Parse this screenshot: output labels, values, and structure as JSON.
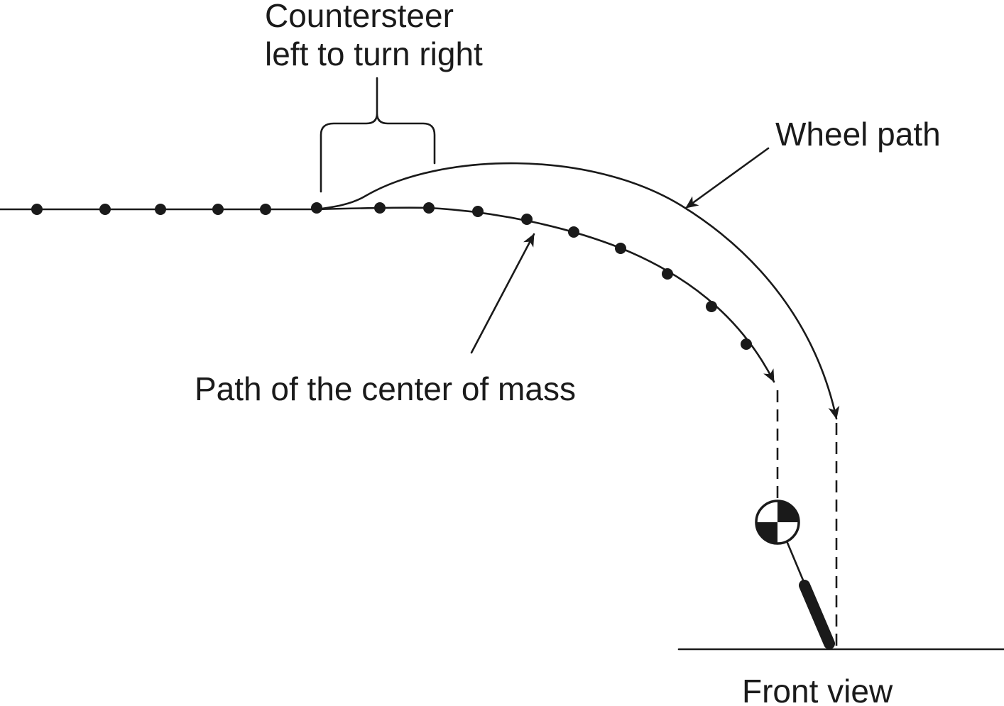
{
  "labels": {
    "countersteer_line1": "Countersteer",
    "countersteer_line2": "left to turn right",
    "wheel_path": "Wheel path",
    "center_of_mass_path": "Path of the center of mass",
    "front_view": "Front view"
  },
  "colors": {
    "ink": "#1a1a1a",
    "background": "#ffffff"
  }
}
